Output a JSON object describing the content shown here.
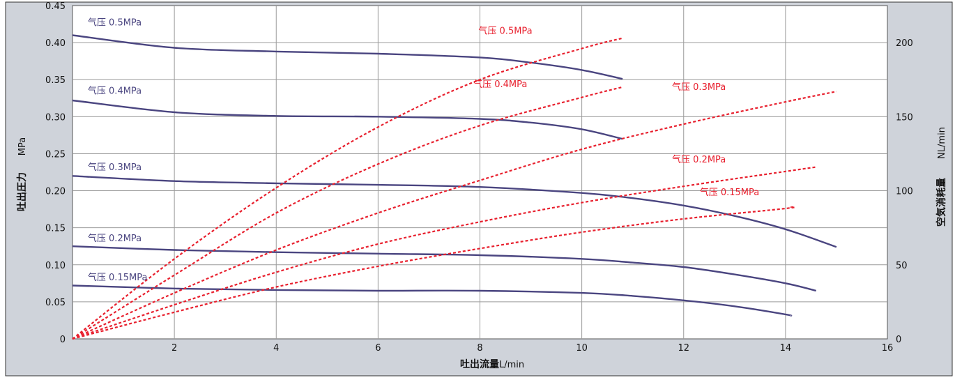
{
  "chart_data": {
    "type": "line",
    "title": "",
    "xlabel": "吐出流量",
    "xlabel_unit": "L/min",
    "ylabel": "吐出圧力",
    "ylabel_unit": "MPa",
    "y2label": "空気消耗量",
    "y2label_unit": "NL/min",
    "xlim": [
      0,
      16
    ],
    "ylim": [
      0,
      0.45
    ],
    "y2lim": [
      0,
      225
    ],
    "x_ticks": [
      "2",
      "4",
      "6",
      "8",
      "10",
      "12",
      "14",
      "16"
    ],
    "y_ticks": [
      "0",
      "0.05",
      "0.10",
      "0.15",
      "0.20",
      "0.25",
      "0.30",
      "0.35",
      "0.40",
      "0.45"
    ],
    "y2_ticks": [
      "0",
      "50",
      "100",
      "150",
      "200"
    ],
    "grid": true,
    "colors": {
      "pressure": "#4a4580",
      "air": "#e8202e",
      "background": "#cfd3da",
      "plot": "#ffffff"
    },
    "series": [
      {
        "name": "气压 0.5MPa",
        "axis": "left",
        "kind": "pressure",
        "x": [
          0,
          2,
          4,
          6,
          8,
          9,
          10,
          10.8
        ],
        "y": [
          0.41,
          0.393,
          0.388,
          0.385,
          0.38,
          0.373,
          0.363,
          0.351
        ]
      },
      {
        "name": "气压 0.4MPa",
        "axis": "left",
        "kind": "pressure",
        "x": [
          0,
          2,
          4,
          6,
          8,
          9,
          10,
          10.8
        ],
        "y": [
          0.322,
          0.306,
          0.301,
          0.3,
          0.297,
          0.292,
          0.283,
          0.27
        ]
      },
      {
        "name": "气压 0.3MPa",
        "axis": "left",
        "kind": "pressure",
        "x": [
          0,
          2,
          4,
          6,
          8,
          10,
          11,
          12,
          13,
          14,
          15
        ],
        "y": [
          0.22,
          0.213,
          0.21,
          0.208,
          0.205,
          0.197,
          0.19,
          0.18,
          0.166,
          0.148,
          0.124
        ]
      },
      {
        "name": "气压 0.2MPa",
        "axis": "left",
        "kind": "pressure",
        "x": [
          0,
          2,
          4,
          6,
          8,
          10,
          11,
          12,
          13,
          14,
          14.6
        ],
        "y": [
          0.125,
          0.12,
          0.117,
          0.115,
          0.113,
          0.108,
          0.103,
          0.097,
          0.087,
          0.075,
          0.065
        ]
      },
      {
        "name": "气压 0.15MPa",
        "axis": "left",
        "kind": "pressure",
        "x": [
          0,
          2,
          4,
          6,
          8,
          10,
          11,
          12,
          13,
          14,
          14.1
        ],
        "y": [
          0.072,
          0.068,
          0.066,
          0.065,
          0.065,
          0.062,
          0.058,
          0.052,
          0.044,
          0.033,
          0.031
        ]
      },
      {
        "name": "气压 0.5MPa",
        "axis": "right",
        "kind": "air",
        "x": [
          0,
          2,
          4,
          6,
          8,
          10,
          10.8
        ],
        "y": [
          0,
          54,
          102,
          143,
          175,
          196,
          203
        ]
      },
      {
        "name": "气压 0.4MPa",
        "axis": "right",
        "kind": "air",
        "x": [
          0,
          2,
          4,
          6,
          8,
          10,
          10.8
        ],
        "y": [
          0,
          43,
          85,
          118,
          144,
          163,
          170
        ]
      },
      {
        "name": "气压 0.3MPa",
        "axis": "right",
        "kind": "air",
        "x": [
          0,
          2,
          4,
          6,
          8,
          10,
          12,
          14,
          15
        ],
        "y": [
          0,
          31,
          60,
          85,
          107,
          128,
          145,
          160,
          167
        ]
      },
      {
        "name": "气压 0.2MPa",
        "axis": "right",
        "kind": "air",
        "x": [
          0,
          2,
          4,
          6,
          8,
          10,
          12,
          14,
          14.6
        ],
        "y": [
          0,
          23,
          45,
          64,
          79,
          92,
          103,
          113,
          116
        ]
      },
      {
        "name": "气压 0.15MPa",
        "axis": "right",
        "kind": "air",
        "x": [
          0,
          2,
          4,
          6,
          8,
          10,
          12,
          14,
          14.1
        ],
        "y": [
          0,
          18,
          35,
          49,
          61,
          72,
          81,
          88,
          89
        ]
      }
    ]
  }
}
